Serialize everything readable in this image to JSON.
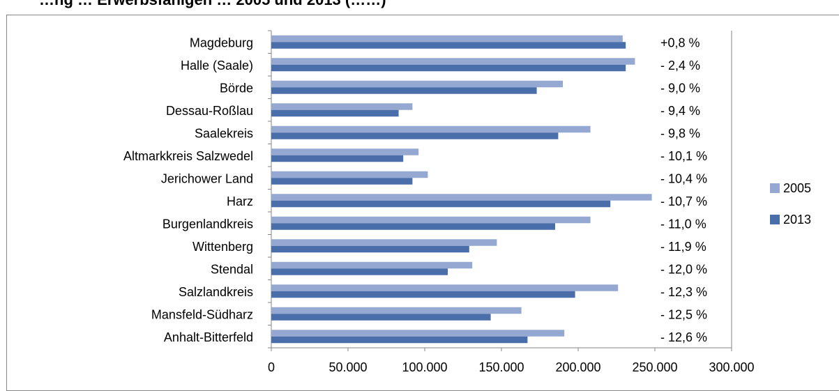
{
  "chart_data": {
    "type": "bar",
    "orientation": "horizontal",
    "title": "…ng … Erwerbsfähigen … 2005 und 2013 (……)",
    "categories": [
      "Magdeburg",
      "Halle (Saale)",
      "Börde",
      "Dessau-Roßlau",
      "Saalekreis",
      "Altmarkkreis Salzwedel",
      "Jerichower Land",
      "Harz",
      "Burgenlandkreis",
      "Wittenberg",
      "Stendal",
      "Salzlandkreis",
      "Mansfeld-Südharz",
      "Anhalt-Bitterfeld"
    ],
    "series": [
      {
        "name": "2005",
        "color": "#95a8d2",
        "values": [
          229000,
          237000,
          190000,
          92000,
          208000,
          96000,
          102000,
          248000,
          208000,
          147000,
          131000,
          226000,
          163000,
          191000
        ]
      },
      {
        "name": "2013",
        "color": "#4a6ea9",
        "values": [
          231000,
          231000,
          173000,
          83000,
          187000,
          86000,
          92000,
          221000,
          185000,
          129000,
          115000,
          198000,
          143000,
          167000
        ]
      }
    ],
    "change_labels": [
      "+0,8 %",
      "- 2,4 %",
      "- 9,0 %",
      "- 9,4 %",
      "- 9,8 %",
      "- 10,1 %",
      "- 10,4 %",
      "- 10,7 %",
      "- 11,0 %",
      "- 11,9 %",
      "- 12,0 %",
      "- 12,3 %",
      "- 12,5 %",
      "- 12,6 %"
    ],
    "xlim": [
      0,
      300000
    ],
    "xticks": [
      0,
      50000,
      100000,
      150000,
      200000,
      250000,
      300000
    ],
    "xtick_labels": [
      "0",
      "50.000",
      "100.000",
      "150.000",
      "200.000",
      "250.000",
      "300.000"
    ],
    "xlabel": "",
    "ylabel": "",
    "grid": false,
    "legend_position": "right"
  }
}
